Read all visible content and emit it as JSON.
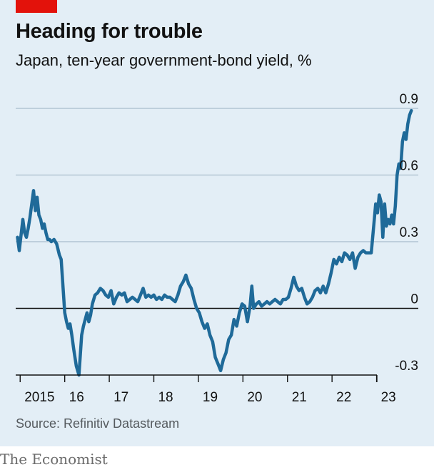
{
  "header": {
    "title": "Heading for trouble",
    "subtitle": "Japan, ten-year government-bond yield, %"
  },
  "footer": {
    "source": "Source: Refinitiv Datastream",
    "brand": "The Economist"
  },
  "colors": {
    "line": "#1f6a99",
    "panel": "#e3eef6",
    "grid": "#a9bdcc",
    "zero": "#121212",
    "accent": "#e3120b"
  },
  "chart_data": {
    "type": "line",
    "title": "Heading for trouble",
    "subtitle": "Japan, ten-year government-bond yield, %",
    "ylabel": "%",
    "ylim": [
      -0.3,
      0.9
    ],
    "xlim": [
      2014.9,
      2024.0
    ],
    "y_ticks": [
      {
        "value": 0.9,
        "label": "0.9"
      },
      {
        "value": 0.6,
        "label": "0.6"
      },
      {
        "value": 0.3,
        "label": "0.3"
      },
      {
        "value": 0,
        "label": "0"
      },
      {
        "value": -0.3,
        "label": "-0.3"
      }
    ],
    "x_ticks": [
      {
        "value": 2015,
        "label": "2015"
      },
      {
        "value": 2016,
        "label": "16"
      },
      {
        "value": 2017,
        "label": "17"
      },
      {
        "value": 2018,
        "label": "18"
      },
      {
        "value": 2019,
        "label": "19"
      },
      {
        "value": 2020,
        "label": "20"
      },
      {
        "value": 2021,
        "label": "21"
      },
      {
        "value": 2022,
        "label": "22"
      },
      {
        "value": 2023,
        "label": "23"
      }
    ],
    "grid": true,
    "series": [
      {
        "name": "",
        "x": [
          2014.94,
          2014.98,
          2015.02,
          2015.06,
          2015.1,
          2015.14,
          2015.18,
          2015.22,
          2015.26,
          2015.3,
          2015.34,
          2015.38,
          2015.42,
          2015.46,
          2015.5,
          2015.54,
          2015.58,
          2015.62,
          2015.66,
          2015.7,
          2015.76,
          2015.82,
          2015.88,
          2015.92,
          2015.96,
          2016.0,
          2016.04,
          2016.08,
          2016.12,
          2016.16,
          2016.2,
          2016.26,
          2016.32,
          2016.38,
          2016.42,
          2016.46,
          2016.5,
          2016.54,
          2016.58,
          2016.62,
          2016.68,
          2016.74,
          2016.8,
          2016.86,
          2016.92,
          2016.98,
          2017.04,
          2017.1,
          2017.16,
          2017.22,
          2017.28,
          2017.34,
          2017.4,
          2017.46,
          2017.52,
          2017.58,
          2017.64,
          2017.7,
          2017.76,
          2017.82,
          2017.88,
          2017.94,
          2018.0,
          2018.06,
          2018.12,
          2018.18,
          2018.24,
          2018.3,
          2018.36,
          2018.42,
          2018.48,
          2018.54,
          2018.6,
          2018.66,
          2018.72,
          2018.78,
          2018.84,
          2018.9,
          2018.96,
          2019.02,
          2019.08,
          2019.14,
          2019.2,
          2019.26,
          2019.32,
          2019.38,
          2019.44,
          2019.5,
          2019.56,
          2019.62,
          2019.68,
          2019.74,
          2019.8,
          2019.86,
          2019.92,
          2019.98,
          2020.04,
          2020.1,
          2020.16,
          2020.2,
          2020.24,
          2020.3,
          2020.36,
          2020.42,
          2020.48,
          2020.54,
          2020.6,
          2020.66,
          2020.72,
          2020.78,
          2020.84,
          2020.9,
          2020.96,
          2021.02,
          2021.08,
          2021.14,
          2021.2,
          2021.26,
          2021.32,
          2021.38,
          2021.44,
          2021.5,
          2021.56,
          2021.62,
          2021.68,
          2021.74,
          2021.8,
          2021.86,
          2021.92,
          2021.98,
          2022.04,
          2022.1,
          2022.16,
          2022.22,
          2022.28,
          2022.34,
          2022.4,
          2022.46,
          2022.52,
          2022.58,
          2022.64,
          2022.7,
          2022.76,
          2022.82,
          2022.88,
          2022.94,
          2022.98,
          2023.02,
          2023.06,
          2023.1,
          2023.14,
          2023.18,
          2023.22,
          2023.26,
          2023.3,
          2023.34,
          2023.38,
          2023.42,
          2023.46,
          2023.5,
          2023.54,
          2023.58,
          2023.62,
          2023.66,
          2023.7,
          2023.74,
          2023.78
        ],
        "values": [
          0.32,
          0.26,
          0.33,
          0.4,
          0.34,
          0.32,
          0.36,
          0.41,
          0.47,
          0.53,
          0.44,
          0.5,
          0.42,
          0.4,
          0.36,
          0.38,
          0.34,
          0.31,
          0.31,
          0.3,
          0.31,
          0.29,
          0.24,
          0.22,
          0.1,
          -0.02,
          -0.06,
          -0.09,
          -0.07,
          -0.12,
          -0.18,
          -0.26,
          -0.3,
          -0.12,
          -0.08,
          -0.05,
          -0.02,
          -0.06,
          -0.03,
          0.02,
          0.06,
          0.07,
          0.09,
          0.08,
          0.06,
          0.05,
          0.08,
          0.02,
          0.05,
          0.07,
          0.06,
          0.07,
          0.03,
          0.04,
          0.05,
          0.04,
          0.03,
          0.06,
          0.09,
          0.05,
          0.06,
          0.05,
          0.06,
          0.04,
          0.05,
          0.04,
          0.06,
          0.05,
          0.05,
          0.04,
          0.03,
          0.06,
          0.1,
          0.12,
          0.15,
          0.11,
          0.09,
          0.04,
          0.0,
          -0.02,
          -0.06,
          -0.09,
          -0.07,
          -0.12,
          -0.15,
          -0.22,
          -0.25,
          -0.28,
          -0.23,
          -0.2,
          -0.14,
          -0.12,
          -0.05,
          -0.08,
          -0.02,
          0.02,
          0.01,
          -0.06,
          0.01,
          0.1,
          0.0,
          0.02,
          0.03,
          0.01,
          0.02,
          0.03,
          0.02,
          0.03,
          0.04,
          0.03,
          0.02,
          0.04,
          0.04,
          0.05,
          0.09,
          0.14,
          0.1,
          0.08,
          0.09,
          0.05,
          0.02,
          0.03,
          0.05,
          0.08,
          0.09,
          0.07,
          0.1,
          0.07,
          0.11,
          0.16,
          0.22,
          0.2,
          0.23,
          0.21,
          0.25,
          0.24,
          0.22,
          0.25,
          0.18,
          0.23,
          0.25,
          0.26,
          0.25,
          0.25,
          0.25,
          0.38,
          0.47,
          0.43,
          0.51,
          0.48,
          0.32,
          0.47,
          0.37,
          0.4,
          0.38,
          0.42,
          0.38,
          0.46,
          0.6,
          0.65,
          0.63,
          0.75,
          0.79,
          0.76,
          0.83,
          0.87,
          0.89
        ]
      }
    ]
  }
}
